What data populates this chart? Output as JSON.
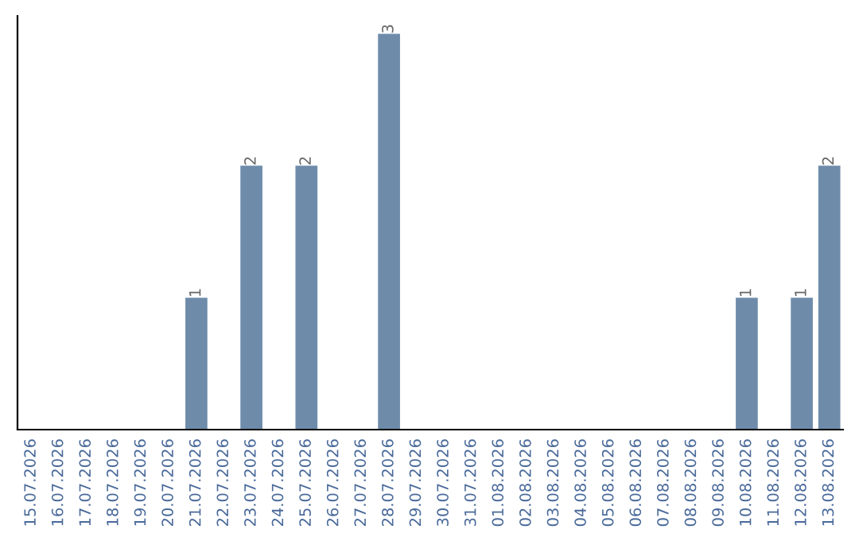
{
  "chart_data": {
    "type": "bar",
    "categories": [
      "15.07.2026",
      "16.07.2026",
      "17.07.2026",
      "18.07.2026",
      "19.07.2026",
      "20.07.2026",
      "21.07.2026",
      "22.07.2026",
      "23.07.2026",
      "24.07.2026",
      "25.07.2026",
      "26.07.2026",
      "27.07.2026",
      "28.07.2026",
      "29.07.2026",
      "30.07.2026",
      "31.07.2026",
      "01.08.2026",
      "02.08.2026",
      "03.08.2026",
      "04.08.2026",
      "05.08.2026",
      "06.08.2026",
      "07.08.2026",
      "08.08.2026",
      "09.08.2026",
      "10.08.2026",
      "11.08.2026",
      "12.08.2026",
      "13.08.2026"
    ],
    "values": [
      0,
      0,
      0,
      0,
      0,
      0,
      1,
      0,
      2,
      0,
      2,
      0,
      0,
      3,
      0,
      0,
      0,
      0,
      0,
      0,
      0,
      0,
      0,
      0,
      0,
      0,
      1,
      0,
      1,
      2
    ],
    "value_labels": [
      null,
      null,
      null,
      null,
      null,
      null,
      "1",
      null,
      "2",
      null,
      "2",
      null,
      null,
      "3",
      null,
      null,
      null,
      null,
      null,
      null,
      null,
      null,
      null,
      null,
      null,
      null,
      "1",
      null,
      "1",
      "2"
    ],
    "color": "#6e8caa",
    "grid": false,
    "legend": false
  }
}
